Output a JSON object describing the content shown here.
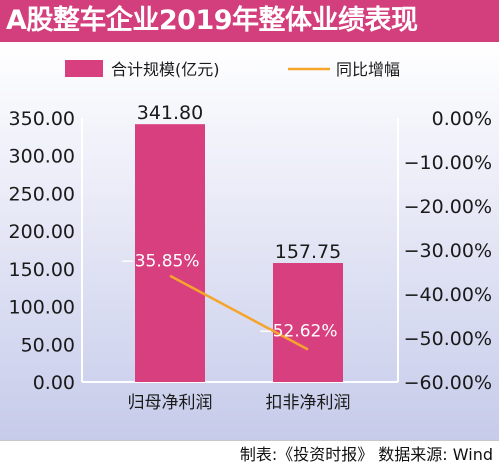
{
  "title": "A股整车企业2019年整体业绩表现",
  "source": "制表:《投资时报》 数据来源: Wind",
  "colors": {
    "header": "#d33f7c",
    "bar": "#d83f7e",
    "line": "#f5a42c",
    "text": "#1a1a1a"
  },
  "chart_data": {
    "type": "bar",
    "categories": [
      "归母净利润",
      "扣非净利润"
    ],
    "series": [
      {
        "name": "合计规模(亿元)",
        "type": "bar",
        "axis": "left",
        "values": [
          341.8,
          157.75
        ],
        "labels": [
          "341.80",
          "157.75"
        ]
      },
      {
        "name": "同比增幅",
        "type": "line",
        "axis": "right",
        "values": [
          -35.85,
          -52.62
        ],
        "labels": [
          "−35.85%",
          "−52.62%"
        ]
      }
    ],
    "ylim": [
      0,
      350
    ],
    "yticks": [
      "0.00",
      "50.00",
      "100.00",
      "150.00",
      "200.00",
      "250.00",
      "300.00",
      "350.00"
    ],
    "y2lim": [
      -60,
      0
    ],
    "y2ticks": [
      "0.00%",
      "−10.00%",
      "−20.00%",
      "−30.00%",
      "−40.00%",
      "−50.00%",
      "−60.00%"
    ],
    "legend": "top",
    "grid": false
  }
}
